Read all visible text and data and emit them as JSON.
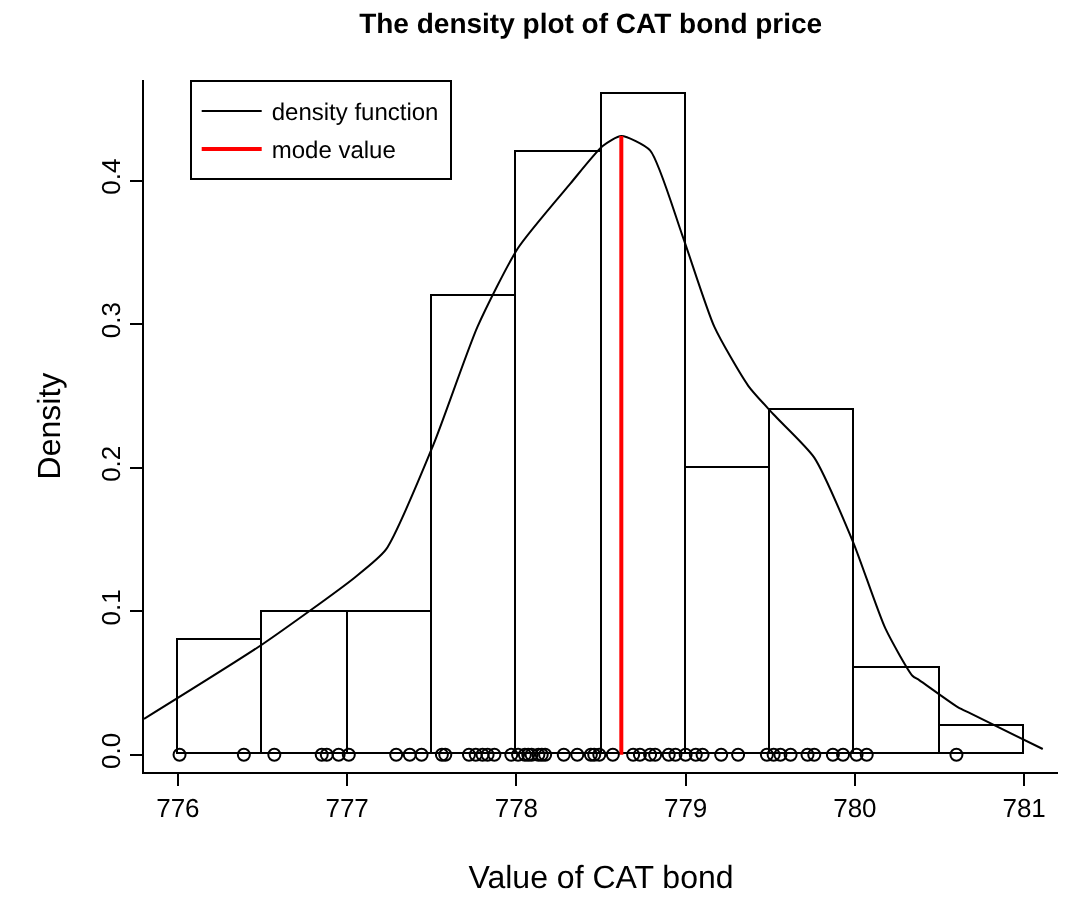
{
  "chart_data": {
    "type": "histogram",
    "title": "The density plot of CAT bond price",
    "xlabel": "Value of CAT bond",
    "ylabel": "Density",
    "bins": [
      776,
      776.5,
      777,
      777.5,
      778,
      778.5,
      779,
      779.5,
      780,
      780.5,
      781
    ],
    "values": [
      0.08,
      0.1,
      0.1,
      0.32,
      0.42,
      0.46,
      0.2,
      0.24,
      0.06,
      0.02
    ],
    "color": "#ffffff",
    "series": [
      {
        "type": "line",
        "name": "density function",
        "color": "#000000",
        "x": [
          775.8,
          776.5,
          777.04,
          777.23,
          777.51,
          777.77,
          778.01,
          778.32,
          778.51,
          778.62,
          778.79,
          778.98,
          779.17,
          779.37,
          779.52,
          779.76,
          779.99,
          780.18,
          780.34,
          780.38,
          780.61,
          780.68,
          781.11
        ],
        "values": [
          0.025,
          0.077,
          0.123,
          0.143,
          0.216,
          0.298,
          0.353,
          0.398,
          0.424,
          0.431,
          0.421,
          0.362,
          0.298,
          0.257,
          0.237,
          0.207,
          0.148,
          0.088,
          0.055,
          0.052,
          0.033,
          0.029,
          0.004
        ]
      },
      {
        "type": "line",
        "name": "mode value",
        "color": "#ff0000",
        "x": [
          778.62,
          778.62
        ],
        "values": [
          0,
          0.431
        ]
      },
      {
        "type": "scatter",
        "marker": "circle",
        "color": "#000000",
        "x": [
          776.01,
          776.39,
          776.57,
          776.85,
          776.88,
          776.95,
          777.01,
          777.29,
          777.37,
          777.44,
          777.56,
          777.58,
          777.72,
          777.76,
          777.8,
          777.83,
          777.87,
          777.97,
          778.01,
          778.05,
          778.07,
          778.09,
          778.13,
          778.15,
          778.17,
          778.28,
          778.36,
          778.44,
          778.46,
          778.49,
          778.57,
          778.69,
          778.73,
          778.79,
          778.82,
          778.9,
          778.94,
          779.0,
          779.06,
          779.1,
          779.21,
          779.31,
          779.48,
          779.52,
          779.56,
          779.62,
          779.72,
          779.76,
          779.87,
          779.93,
          780.01,
          780.07,
          780.6
        ],
        "values": [
          0,
          0,
          0,
          0,
          0,
          0,
          0,
          0,
          0,
          0,
          0,
          0,
          0,
          0,
          0,
          0,
          0,
          0,
          0,
          0,
          0,
          0,
          0,
          0,
          0,
          0,
          0,
          0,
          0,
          0,
          0,
          0,
          0,
          0,
          0,
          0,
          0,
          0,
          0,
          0,
          0,
          0,
          0,
          0,
          0,
          0,
          0,
          0,
          0,
          0,
          0,
          0,
          0
        ]
      }
    ],
    "xlim": [
      775.8,
      781.2
    ],
    "xticks": [
      776,
      777,
      778,
      779,
      780,
      781
    ],
    "ylim": [
      -0.012,
      0.47
    ],
    "yticks": [
      {
        "value": 0,
        "label": "0.0"
      },
      0.1,
      0.2,
      0.3,
      0.4
    ],
    "grid": false,
    "legend": "top left"
  }
}
